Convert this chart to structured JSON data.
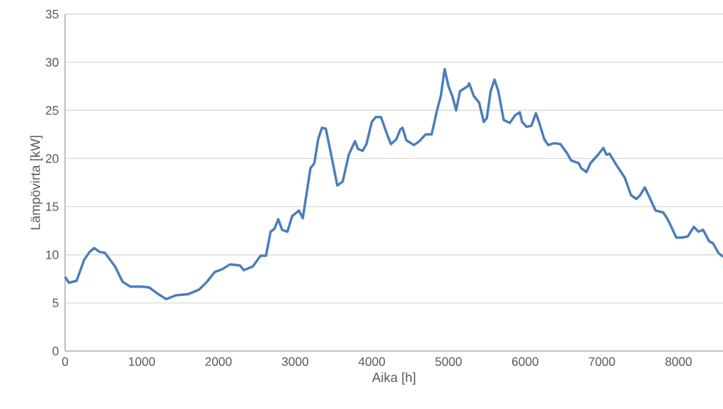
{
  "chart_data": {
    "type": "line",
    "xlabel": "Aika [h]",
    "ylabel": "Lämpövirta [kW]",
    "x": [
      0,
      50,
      150,
      250,
      320,
      380,
      450,
      520,
      650,
      750,
      850,
      1000,
      1100,
      1200,
      1320,
      1450,
      1600,
      1750,
      1850,
      1950,
      2050,
      2150,
      2280,
      2330,
      2450,
      2550,
      2620,
      2680,
      2730,
      2780,
      2830,
      2900,
      2960,
      3050,
      3100,
      3200,
      3250,
      3300,
      3350,
      3400,
      3480,
      3550,
      3620,
      3700,
      3780,
      3820,
      3880,
      3930,
      4000,
      4050,
      4120,
      4200,
      4250,
      4320,
      4370,
      4400,
      4450,
      4550,
      4620,
      4700,
      4780,
      4850,
      4900,
      4950,
      5000,
      5050,
      5100,
      5150,
      5250,
      5270,
      5330,
      5400,
      5460,
      5500,
      5550,
      5600,
      5650,
      5720,
      5800,
      5870,
      5930,
      5960,
      6020,
      6080,
      6140,
      6180,
      6250,
      6300,
      6380,
      6460,
      6550,
      6600,
      6700,
      6730,
      6800,
      6850,
      6950,
      7020,
      7060,
      7100,
      7200,
      7300,
      7380,
      7450,
      7500,
      7560,
      7620,
      7700,
      7800,
      7850,
      7900,
      7970,
      8050,
      8120,
      8200,
      8260,
      8320,
      8400,
      8450,
      8520,
      8580
    ],
    "values": [
      7.7,
      7.1,
      7.3,
      9.5,
      10.3,
      10.7,
      10.3,
      10.2,
      8.8,
      7.2,
      6.7,
      6.7,
      6.6,
      6.0,
      5.4,
      5.8,
      5.9,
      6.4,
      7.2,
      8.2,
      8.5,
      9.0,
      8.9,
      8.4,
      8.8,
      9.9,
      9.9,
      12.4,
      12.7,
      13.7,
      12.6,
      12.4,
      14.0,
      14.6,
      13.8,
      19.0,
      19.5,
      22.0,
      23.2,
      23.1,
      20.0,
      17.2,
      17.6,
      20.4,
      21.8,
      21.0,
      20.8,
      21.5,
      23.8,
      24.3,
      24.3,
      22.5,
      21.5,
      22.0,
      23.0,
      23.2,
      21.9,
      21.4,
      21.8,
      22.5,
      22.5,
      25.0,
      26.5,
      29.3,
      27.5,
      26.5,
      25.0,
      27.0,
      27.5,
      27.8,
      26.5,
      25.8,
      23.8,
      24.2,
      27.0,
      28.2,
      27.0,
      24.0,
      23.7,
      24.5,
      24.8,
      23.8,
      23.3,
      23.4,
      24.7,
      23.8,
      22.0,
      21.4,
      21.6,
      21.5,
      20.5,
      19.8,
      19.5,
      19.0,
      18.6,
      19.5,
      20.4,
      21.1,
      20.4,
      20.5,
      19.2,
      18.0,
      16.2,
      15.8,
      16.2,
      17.0,
      16.0,
      14.6,
      14.4,
      13.8,
      13.0,
      11.8,
      11.8,
      11.9,
      12.9,
      12.4,
      12.6,
      11.4,
      11.2,
      10.2,
      9.8
    ],
    "color": "#4a7ebb",
    "xlim": [
      0,
      8580
    ],
    "ylim": [
      0,
      35
    ],
    "xticks": [
      0,
      1000,
      2000,
      3000,
      4000,
      5000,
      6000,
      7000,
      8000
    ],
    "yticks": [
      0,
      5,
      10,
      15,
      20,
      25,
      30,
      35
    ],
    "grid": "y",
    "marker": "none",
    "line_style": "solid"
  }
}
